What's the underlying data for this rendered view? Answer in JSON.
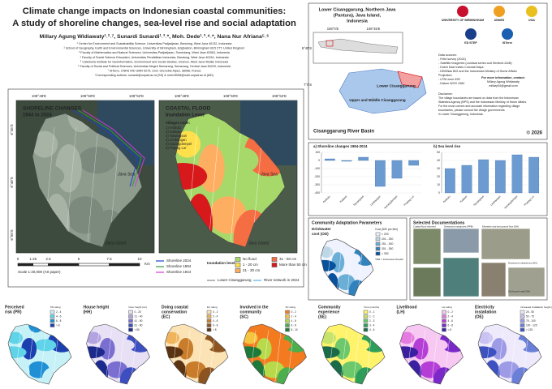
{
  "header": {
    "title": [
      "Climate change impacts on Indonesian coastal communities:",
      "A study of shoreline changes, sea-level rise and social adaptation"
    ],
    "authors": "Millary Agung Widiawaty¹˒²˒⁷, Sunardi Sunardi¹˒³˒*, Moh. Dede¹˒³˒⁴˒*, Nana Nur Afriana⁵˒⁶",
    "affiliations": [
      "¹ Center for Environment and Sustainability Science, Universitas Padjadjaran, Bandung, West Java 40132, Indonesia",
      "² School of Geography, Earth and Environmental Sciences, University of Birmingham, Edgbaston, Birmingham B15 2TT, United Kingdom",
      "³ Faculty of Mathematics and Natural Sciences, Universitas Padjadjaran, Sumedang, West Java 45363, Indonesia",
      "⁴ Faculty of Social Science Education, Universitas Pendidikan Indonesia, Bandung, West Java 40154, Indonesia",
      "⁵ Calédonia Institute for Geoinformation, Environment and Social Studies, Cirebon, West Java 45188, Indonesia",
      "⁶ Faculty of Social and Political Sciences, Universitas Negeri Semarang, Semarang, Central Java 50229, Indonesia",
      "⁷ ISTerre, CNRS IRD UMR 5275, Univ. Grenoble Alpes, 38058, France",
      "*Corresponding authors: sunardi@unpad.ac.id (SS) & moh19008@mail.unpad.ac.id (MD)"
    ]
  },
  "location": {
    "title": [
      "Lower Cisanggarung, Northern Java",
      "(Pantura), Java Island,",
      "Indonesia"
    ],
    "lon": [
      "108°0'E",
      "108°45'E"
    ],
    "lat": [
      "6°45'S",
      "7°0'S"
    ],
    "lower": "Lower Cisanggarung",
    "upper": "Upper and Middle Cisanggarung",
    "basin": "Cisanggarung River Basin",
    "logos": [
      "UNIVERSITY OF BIRMINGHAM",
      "UNNES",
      "UGA",
      "ED STEP",
      "ISTerre"
    ],
    "sources": [
      "Data sources:",
      "- Field survey (2024)",
      "- Satellite imageries (Landsat series and Sentinel-2A/B)",
      "- Dutch East Indies Colonial Maps",
      "- DEMNas BIG and the Indonesian Ministry of Home Affairs",
      "Projection:",
      "- UTM zone 49S",
      "- Datum WGS 1984"
    ],
    "contact": [
      "For more information, contact:",
      "Millary Agung Widiawaty",
      "millary04@gmail.com"
    ],
    "disclaimer": [
      "Disclaimer:",
      "The village boundaries are based on data from the Indonesian",
      "Statistics Agency (BPS) and the Indonesian Ministry of Home Affairs.",
      "For the most current and accurate information regarding village",
      "boundaries, please consult the village governments",
      "in Lower Cisanggarung, Indonesia."
    ],
    "copyright": "© 2026"
  },
  "maps": {
    "lon": [
      "108°48'E",
      "108°50'E",
      "108°52'E"
    ],
    "lat": [
      "6°45'S",
      "6°48'S",
      "6°50'S"
    ],
    "shoreline_title": [
      "SHORELINE CHANGES",
      "1944 to 2024"
    ],
    "flood_title": [
      "COASTAL FLOOD",
      "Inundation Level"
    ],
    "sea": "Java Sea",
    "island": "Java Island",
    "codes_title": "Villages code:",
    "codes": [
      "1) Ambulu",
      "2) Kalisari",
      "3) Tawangsari",
      "4) Limbangan",
      "5) Karangdempel",
      "6) Prapag Lor"
    ],
    "scale": [
      0,
      1.25,
      2.5,
      5,
      7.5,
      10
    ],
    "scale_unit": "Km",
    "scale_note": "Scale 1:40,000 (A0 paper)",
    "shorelines": [
      {
        "name": "Shoreline 2024",
        "color": "#1f3fd0"
      },
      {
        "name": "Shoreline 1994",
        "color": "#2e9b3a"
      },
      {
        "name": "Shoreline 1944",
        "color": "#d63ad6"
      }
    ],
    "inundation_title": "Inundation level:",
    "inundation": [
      {
        "name": "No flood",
        "color": "#a6d96a"
      },
      {
        "name": "1 - 20 cm",
        "color": "#ffe04a"
      },
      {
        "name": "21 - 30 cm",
        "color": "#fdae61"
      },
      {
        "name": "31 - 50 cm",
        "color": "#f46d43"
      },
      {
        "name": "More than 50 cm",
        "color": "#d7191c"
      }
    ],
    "boundary": "Lower Cisanggarung",
    "river": "River network in 2024"
  },
  "charts": [
    {
      "type": "bar",
      "title": "a) Shoreline changes 1994-2024",
      "categories": [
        "Ambulu",
        "Kalisari",
        "Tawangsari",
        "Limbangan",
        "Karangdempel",
        "Prapag Lor"
      ],
      "values": [
        20,
        -10,
        40,
        -320,
        -220,
        -60
      ],
      "color": "#6c9bd2",
      "ylim": [
        -400,
        100
      ],
      "yticks": [
        -400,
        -300,
        -200,
        -100,
        0,
        100
      ]
    },
    {
      "type": "bar",
      "title": "b) Sea level rise",
      "categories": [
        "Ambulu",
        "Kalisari",
        "Tawangsari",
        "Limbangan",
        "Karangdempel",
        "Prapag Lor"
      ],
      "values": [
        30,
        34,
        41,
        40,
        47,
        44
      ],
      "color": "#6c9bd2",
      "ylim": [
        0,
        50
      ],
      "yticks": [
        0,
        10,
        20,
        30,
        40,
        50
      ]
    }
  ],
  "community": {
    "title": "Community Adaptation Parameters",
    "map_title": [
      "Drinkwater",
      "cost (OD)"
    ],
    "legend_title": "Cost (IDR per liter)",
    "legend": [
      "< 200",
      "201 - 250",
      "251 - 300",
      "301 - 350",
      "> 350"
    ],
    "colors": [
      "#eff3ff",
      "#bdd7e7",
      "#6baed6",
      "#3182bd",
      "#08519c"
    ],
    "note": "*IDR = Indonesian Rupiah"
  },
  "documentation": {
    "title": "Selected Documentations",
    "captions": [
      "Coastal flood returned",
      "Destroyed mangroves (PPB)",
      "Elevated road and ground floor (EH)",
      "Destroyed embankment (EC)",
      "Old house's wall (OH)"
    ]
  },
  "parameters": [
    {
      "title": [
        "Perceived",
        "risk (PR)"
      ],
      "legend_title": "PR rating",
      "legend": [
        "2 - 4",
        "4 - 6",
        "6 - 8",
        "> 8"
      ],
      "colors": [
        "#c6f1f7",
        "#5fd3e8",
        "#1f8fd6",
        "#1c3fb0"
      ]
    },
    {
      "title": [
        "House height",
        "(HH)"
      ],
      "legend_title": "Floor height (cm)",
      "legend": [
        "0 - 20",
        "21 - 40",
        "41 - 60",
        "61 - 80",
        "> 80"
      ],
      "colors": [
        "#e8e0f5",
        "#b3a3e0",
        "#7a6fd0",
        "#3d4fc0",
        "#1b2a8c"
      ]
    },
    {
      "title": [
        "Doing coastal",
        "conservation",
        "(EC)"
      ],
      "legend_title": "EC rating",
      "legend": [
        "0 - 2",
        "2 - 4",
        "4 - 6",
        "6 - 8",
        "> 8"
      ],
      "colors": [
        "#fbe3b5",
        "#f0b45a",
        "#c97c2a",
        "#8c5420",
        "#5a3412"
      ]
    },
    {
      "title": [
        "Involved in the",
        "community",
        "(SC)"
      ],
      "legend_title": "SC rating",
      "legend": [
        "0 - 2",
        "2 - 4",
        "4 - 6",
        "6 - 8",
        "8 - 10"
      ],
      "colors": [
        "#f47a20",
        "#f5c542",
        "#b8d94a",
        "#4cae4c",
        "#1e7a3a"
      ]
    },
    {
      "title": [
        "Community",
        "experience",
        "(SE)"
      ],
      "legend_title": "Time (months)",
      "legend": [
        "0 - 1",
        "1 - 2",
        "2 - 3",
        "3 - 4",
        "4 - 6"
      ],
      "colors": [
        "#fff36b",
        "#c6e36a",
        "#6cc86a",
        "#2f9d5a",
        "#1a6b4a"
      ]
    },
    {
      "title": [
        "Livelihood",
        "(LH)"
      ],
      "legend_title": "LH rating",
      "legend": [
        "0 - 2",
        "2 - 4",
        "4 - 6",
        "6 - 8",
        "> 8"
      ],
      "colors": [
        "#f6c8f2",
        "#e37be0",
        "#b53fd6",
        "#7a28c8",
        "#3a1fa0"
      ]
    },
    {
      "title": [
        "Electricity",
        "installation",
        "(OE)"
      ],
      "legend_title": "Increased installation height (cm)",
      "legend": [
        "25 - 50",
        "50 - 75",
        "75 - 100",
        "100 - 125",
        "> 125"
      ],
      "colors": [
        "#eeeafc",
        "#c9c2f2",
        "#9e9be6",
        "#6a7fd8",
        "#3d52c0"
      ]
    }
  ]
}
